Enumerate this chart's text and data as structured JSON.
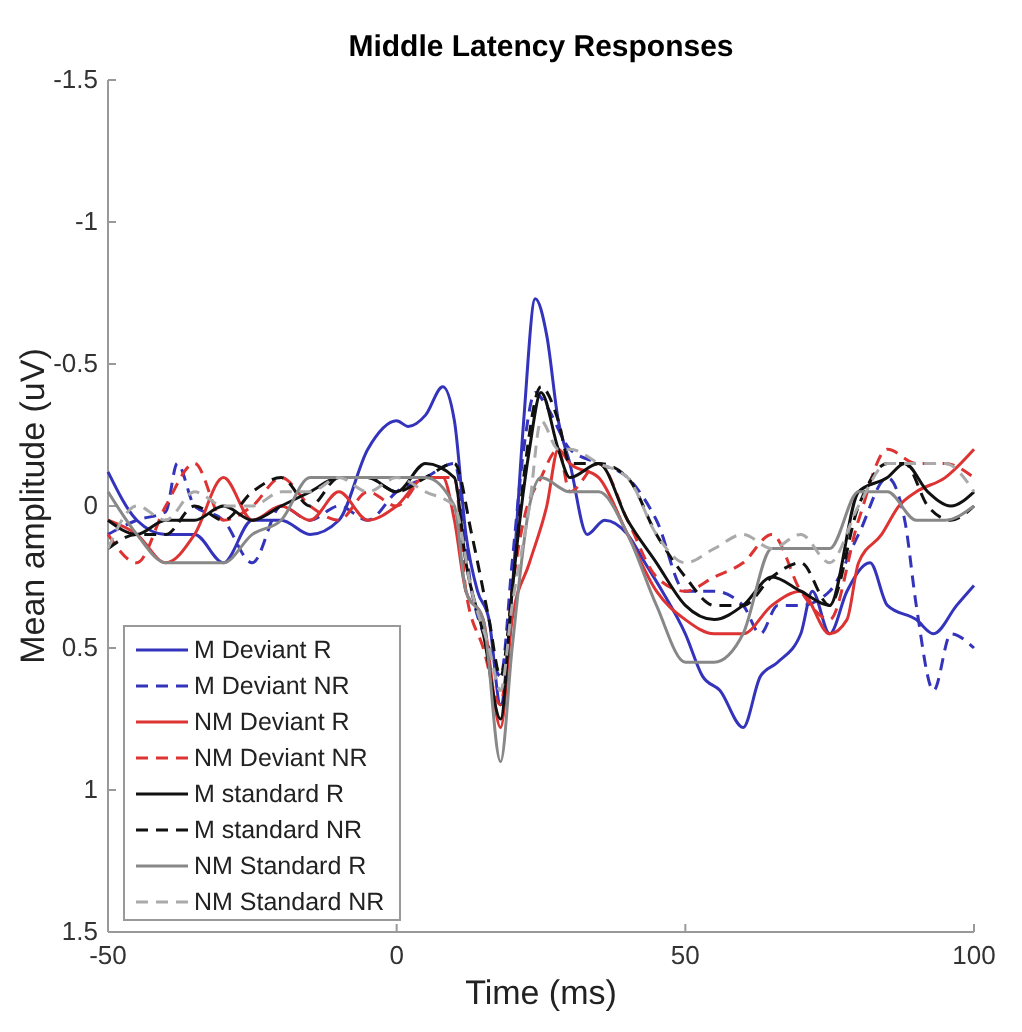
{
  "chart_data": {
    "type": "line",
    "title": "Middle Latency Responses",
    "xlabel": "Time (ms)",
    "ylabel": "Mean amplitude (uV)",
    "xlim": [
      -50,
      100
    ],
    "xticks": [
      -50,
      0,
      50,
      100
    ],
    "ylim": [
      1.5,
      -1.5
    ],
    "yticks": [
      -1.5,
      -1,
      -0.5,
      0,
      0.5,
      1,
      1.5
    ],
    "grid": false,
    "legend": "bottom left",
    "series": [
      {
        "name": "M Deviant R",
        "color": "#3333bb",
        "line_style": "solid",
        "x": [
          -50,
          -45,
          -40,
          -35,
          -30,
          -25,
          -20,
          -15,
          -10,
          -5,
          0,
          2,
          5,
          8,
          10,
          12,
          14,
          16,
          18,
          20,
          22,
          24,
          26,
          28,
          30,
          33,
          36,
          40,
          43,
          46,
          50,
          53,
          56,
          60,
          63,
          66,
          70,
          72,
          75,
          78,
          82,
          85,
          90,
          93,
          97,
          100
        ],
        "values": [
          -0.12,
          0.05,
          0.1,
          0.1,
          0.2,
          0.05,
          0.05,
          0.1,
          0.05,
          -0.2,
          -0.3,
          -0.28,
          -0.32,
          -0.42,
          -0.3,
          0.1,
          0.3,
          0.4,
          0.7,
          0.3,
          -0.3,
          -0.73,
          -0.6,
          -0.3,
          -0.15,
          0.1,
          0.05,
          0.1,
          0.2,
          0.3,
          0.45,
          0.6,
          0.65,
          0.78,
          0.6,
          0.55,
          0.45,
          0.3,
          0.45,
          0.3,
          0.2,
          0.35,
          0.4,
          0.45,
          0.35,
          0.28
        ]
      },
      {
        "name": "M Deviant NR",
        "color": "#3333bb",
        "line_style": "dashed",
        "x": [
          -50,
          -45,
          -40,
          -38,
          -35,
          -30,
          -25,
          -20,
          -15,
          -10,
          -5,
          0,
          5,
          10,
          13,
          16,
          18,
          20,
          22,
          24,
          26,
          30,
          35,
          40,
          45,
          50,
          55,
          60,
          63,
          66,
          70,
          75,
          80,
          85,
          88,
          90,
          93,
          96,
          100
        ],
        "values": [
          0.1,
          0.05,
          0.02,
          -0.15,
          0,
          0.05,
          0.2,
          0,
          0.05,
          0,
          0.05,
          -0.05,
          -0.1,
          -0.15,
          0.3,
          0.5,
          0.6,
          0.2,
          -0.2,
          -0.4,
          -0.35,
          -0.2,
          -0.15,
          -0.1,
          0.05,
          0.3,
          0.3,
          0.35,
          0.45,
          0.35,
          0.35,
          0.3,
          0.1,
          -0.1,
          0.05,
          0.35,
          0.65,
          0.45,
          0.5
        ]
      },
      {
        "name": "NM Deviant R",
        "color": "#dd3333",
        "line_style": "solid",
        "x": [
          -50,
          -45,
          -40,
          -35,
          -30,
          -25,
          -20,
          -15,
          -10,
          -5,
          0,
          5,
          8,
          10,
          12,
          15,
          18,
          20,
          23,
          26,
          28,
          30,
          35,
          40,
          45,
          50,
          55,
          60,
          65,
          70,
          75,
          78,
          80,
          84,
          87,
          90,
          95,
          100
        ],
        "values": [
          0.05,
          0.1,
          0.2,
          0.1,
          -0.1,
          0.05,
          0,
          0.05,
          -0.05,
          0.05,
          0,
          -0.1,
          -0.1,
          0.05,
          0.3,
          0.4,
          0.78,
          0.4,
          0.2,
          0,
          -0.2,
          -0.15,
          -0.1,
          0.1,
          0.3,
          0.4,
          0.45,
          0.45,
          0.35,
          0.3,
          0.45,
          0.4,
          0.2,
          0.1,
          0,
          -0.05,
          -0.1,
          -0.2
        ]
      },
      {
        "name": "NM Deviant NR",
        "color": "#dd3333",
        "line_style": "dashed",
        "x": [
          -50,
          -45,
          -40,
          -35,
          -30,
          -25,
          -20,
          -15,
          -10,
          -5,
          0,
          5,
          10,
          12,
          15,
          18,
          20,
          22,
          25,
          28,
          30,
          35,
          40,
          45,
          50,
          55,
          60,
          65,
          70,
          75,
          80,
          85,
          90,
          95,
          100
        ],
        "values": [
          0.1,
          0.2,
          0,
          -0.15,
          0.05,
          0,
          -0.1,
          0,
          0.05,
          -0.05,
          0,
          -0.1,
          -0.1,
          0.3,
          0.5,
          0.7,
          0.3,
          0.05,
          -0.1,
          -0.2,
          -0.05,
          -0.15,
          0.05,
          0.25,
          0.3,
          0.25,
          0.2,
          0.1,
          0.3,
          0.4,
          0.05,
          -0.2,
          -0.15,
          -0.15,
          -0.1
        ]
      },
      {
        "name": "M standard R",
        "color": "#111111",
        "line_style": "solid",
        "x": [
          -50,
          -45,
          -40,
          -35,
          -30,
          -25,
          -20,
          -15,
          -10,
          -5,
          0,
          5,
          10,
          12,
          15,
          18,
          20,
          23,
          25,
          28,
          30,
          35,
          40,
          45,
          50,
          55,
          60,
          65,
          70,
          75,
          80,
          85,
          88,
          92,
          96,
          100
        ],
        "values": [
          0.05,
          0.1,
          0.05,
          0.05,
          0,
          0.05,
          0,
          -0.05,
          -0.1,
          -0.1,
          -0.05,
          -0.15,
          -0.1,
          0.2,
          0.45,
          0.75,
          0.3,
          -0.2,
          -0.4,
          -0.2,
          -0.1,
          -0.15,
          0.05,
          0.2,
          0.35,
          0.4,
          0.35,
          0.25,
          0.3,
          0.35,
          -0.05,
          -0.1,
          -0.15,
          -0.05,
          0,
          -0.05
        ]
      },
      {
        "name": "M standard NR",
        "color": "#111111",
        "line_style": "dashed",
        "x": [
          -50,
          -45,
          -40,
          -35,
          -30,
          -25,
          -20,
          -15,
          -10,
          -5,
          0,
          5,
          10,
          13,
          16,
          18,
          20,
          22,
          25,
          28,
          30,
          35,
          40,
          45,
          50,
          55,
          60,
          65,
          70,
          75,
          80,
          85,
          88,
          92,
          96,
          100
        ],
        "values": [
          0.15,
          0.1,
          0.1,
          0,
          0.05,
          -0.05,
          -0.1,
          0,
          -0.1,
          -0.1,
          -0.05,
          -0.1,
          -0.15,
          0.1,
          0.4,
          0.6,
          0.3,
          -0.1,
          -0.42,
          -0.3,
          -0.15,
          -0.15,
          -0.1,
          0.1,
          0.25,
          0.35,
          0.35,
          0.25,
          0.2,
          0.35,
          0,
          -0.15,
          -0.15,
          0,
          0.05,
          0
        ]
      },
      {
        "name": "NM Standard R",
        "color": "#888888",
        "line_style": "solid",
        "x": [
          -50,
          -45,
          -40,
          -35,
          -30,
          -25,
          -20,
          -15,
          -10,
          -5,
          0,
          5,
          10,
          12,
          15,
          18,
          20,
          23,
          25,
          30,
          35,
          40,
          45,
          50,
          55,
          60,
          65,
          70,
          75,
          80,
          85,
          90,
          95,
          100
        ],
        "values": [
          -0.05,
          0.1,
          0.2,
          0.2,
          0.2,
          0.1,
          0.05,
          -0.1,
          -0.1,
          -0.1,
          -0.1,
          -0.1,
          0,
          0.3,
          0.4,
          0.9,
          0.5,
          0,
          -0.1,
          -0.05,
          -0.05,
          0.1,
          0.35,
          0.55,
          0.55,
          0.45,
          0.15,
          0.15,
          0.15,
          -0.05,
          -0.05,
          0.05,
          0.05,
          0
        ]
      },
      {
        "name": "NM Standard NR",
        "color": "#aaaaaa",
        "line_style": "dashed",
        "x": [
          -50,
          -45,
          -40,
          -35,
          -30,
          -25,
          -20,
          -15,
          -10,
          -5,
          0,
          5,
          10,
          13,
          16,
          18,
          20,
          23,
          25,
          28,
          30,
          35,
          40,
          45,
          50,
          55,
          60,
          65,
          70,
          75,
          80,
          85,
          90,
          95,
          100
        ],
        "values": [
          0.15,
          0,
          0.05,
          -0.05,
          0,
          0,
          -0.05,
          -0.05,
          -0.1,
          -0.05,
          -0.1,
          -0.05,
          0,
          0.3,
          0.5,
          0.65,
          0.35,
          0,
          -0.3,
          -0.2,
          -0.2,
          -0.15,
          -0.1,
          0.1,
          0.2,
          0.15,
          0.1,
          0.15,
          0.1,
          0.2,
          0,
          -0.15,
          -0.15,
          -0.15,
          -0.05
        ]
      }
    ]
  }
}
